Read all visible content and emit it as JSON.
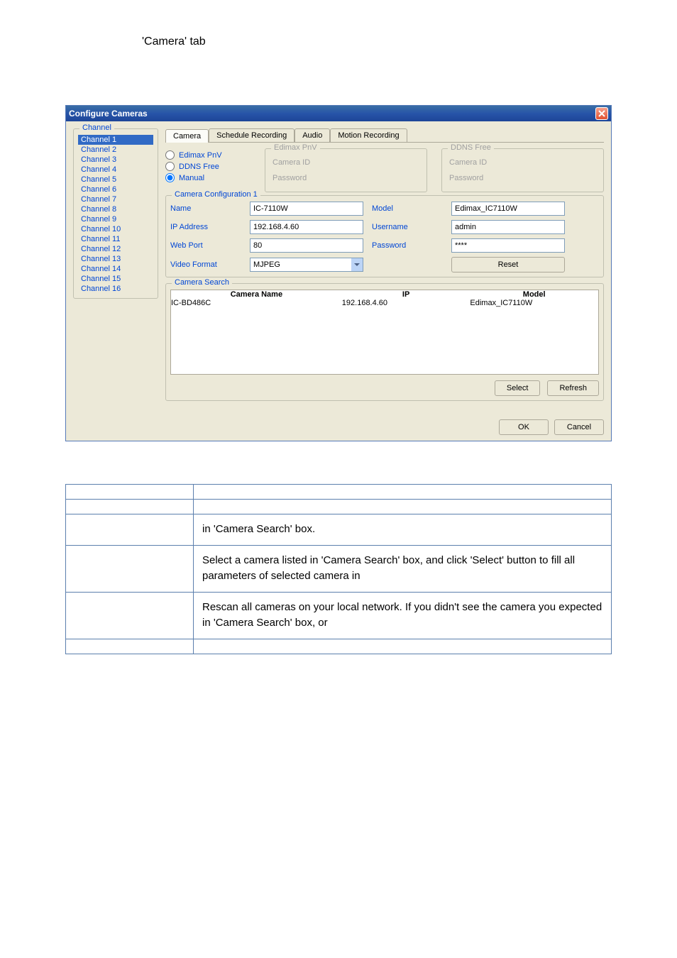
{
  "header": {
    "title": "'Camera' tab"
  },
  "dialog": {
    "title": "Configure Cameras",
    "channel_label": "Channel",
    "channels": [
      "Channel 1",
      "Channel 2",
      "Channel 3",
      "Channel 4",
      "Channel 5",
      "Channel 6",
      "Channel 7",
      "Channel 8",
      "Channel 9",
      "Channel 10",
      "Channel 11",
      "Channel 12",
      "Channel 13",
      "Channel 14",
      "Channel 15",
      "Channel 16"
    ],
    "selected_channel_index": 0,
    "tabs": [
      "Camera",
      "Schedule Recording",
      "Audio",
      "Motion Recording"
    ],
    "active_tab_index": 0,
    "radios": {
      "pnv": "Edimax PnV",
      "ddns": "DDNS Free",
      "manual": "Manual"
    },
    "selected_radio": "manual",
    "pnv_group": {
      "legend": "Edimax PnV",
      "camera_id": "Camera ID",
      "password": "Password"
    },
    "ddns_group": {
      "legend": "DDNS Free",
      "camera_id": "Camera ID",
      "password": "Password"
    },
    "config": {
      "legend": "Camera Configuration 1",
      "labels": {
        "name": "Name",
        "model": "Model",
        "ip": "IP Address",
        "user": "Username",
        "port": "Web Port",
        "pass": "Password",
        "format": "Video Format"
      },
      "values": {
        "name": "IC-7110W",
        "model": "Edimax_IC7110W",
        "ip": "192.168.4.60",
        "user": "admin",
        "port": "80",
        "pass": "****",
        "format": "MJPEG"
      },
      "reset": "Reset"
    },
    "search": {
      "legend": "Camera Search",
      "headers": {
        "name": "Camera Name",
        "ip": "IP",
        "model": "Model"
      },
      "rows": [
        {
          "name": "IC-BD486C",
          "ip": "192.168.4.60",
          "model": "Edimax_IC7110W"
        }
      ],
      "select": "Select",
      "refresh": "Refresh"
    },
    "footer": {
      "ok": "OK",
      "cancel": "Cancel"
    }
  },
  "doc_table": {
    "rows": [
      {
        "col1": "",
        "col2": ""
      },
      {
        "col1": "",
        "col2": ""
      },
      {
        "col1": "",
        "col2": "in 'Camera Search' box."
      },
      {
        "col1": "",
        "col2": "Select a camera listed in 'Camera Search' box, and click 'Select' button to fill all parameters of selected camera in"
      },
      {
        "col1": "",
        "col2": "Rescan all cameras on your local network. If you didn't see the camera you expected in 'Camera Search' box, or"
      },
      {
        "col1": "",
        "col2": ""
      }
    ]
  },
  "colors": {
    "titlebar_start": "#3a6ea5",
    "titlebar_end": "#1d4598",
    "link_blue": "#0046d5",
    "dialog_bg": "#ece9d8",
    "table_border": "#5b7fad"
  }
}
